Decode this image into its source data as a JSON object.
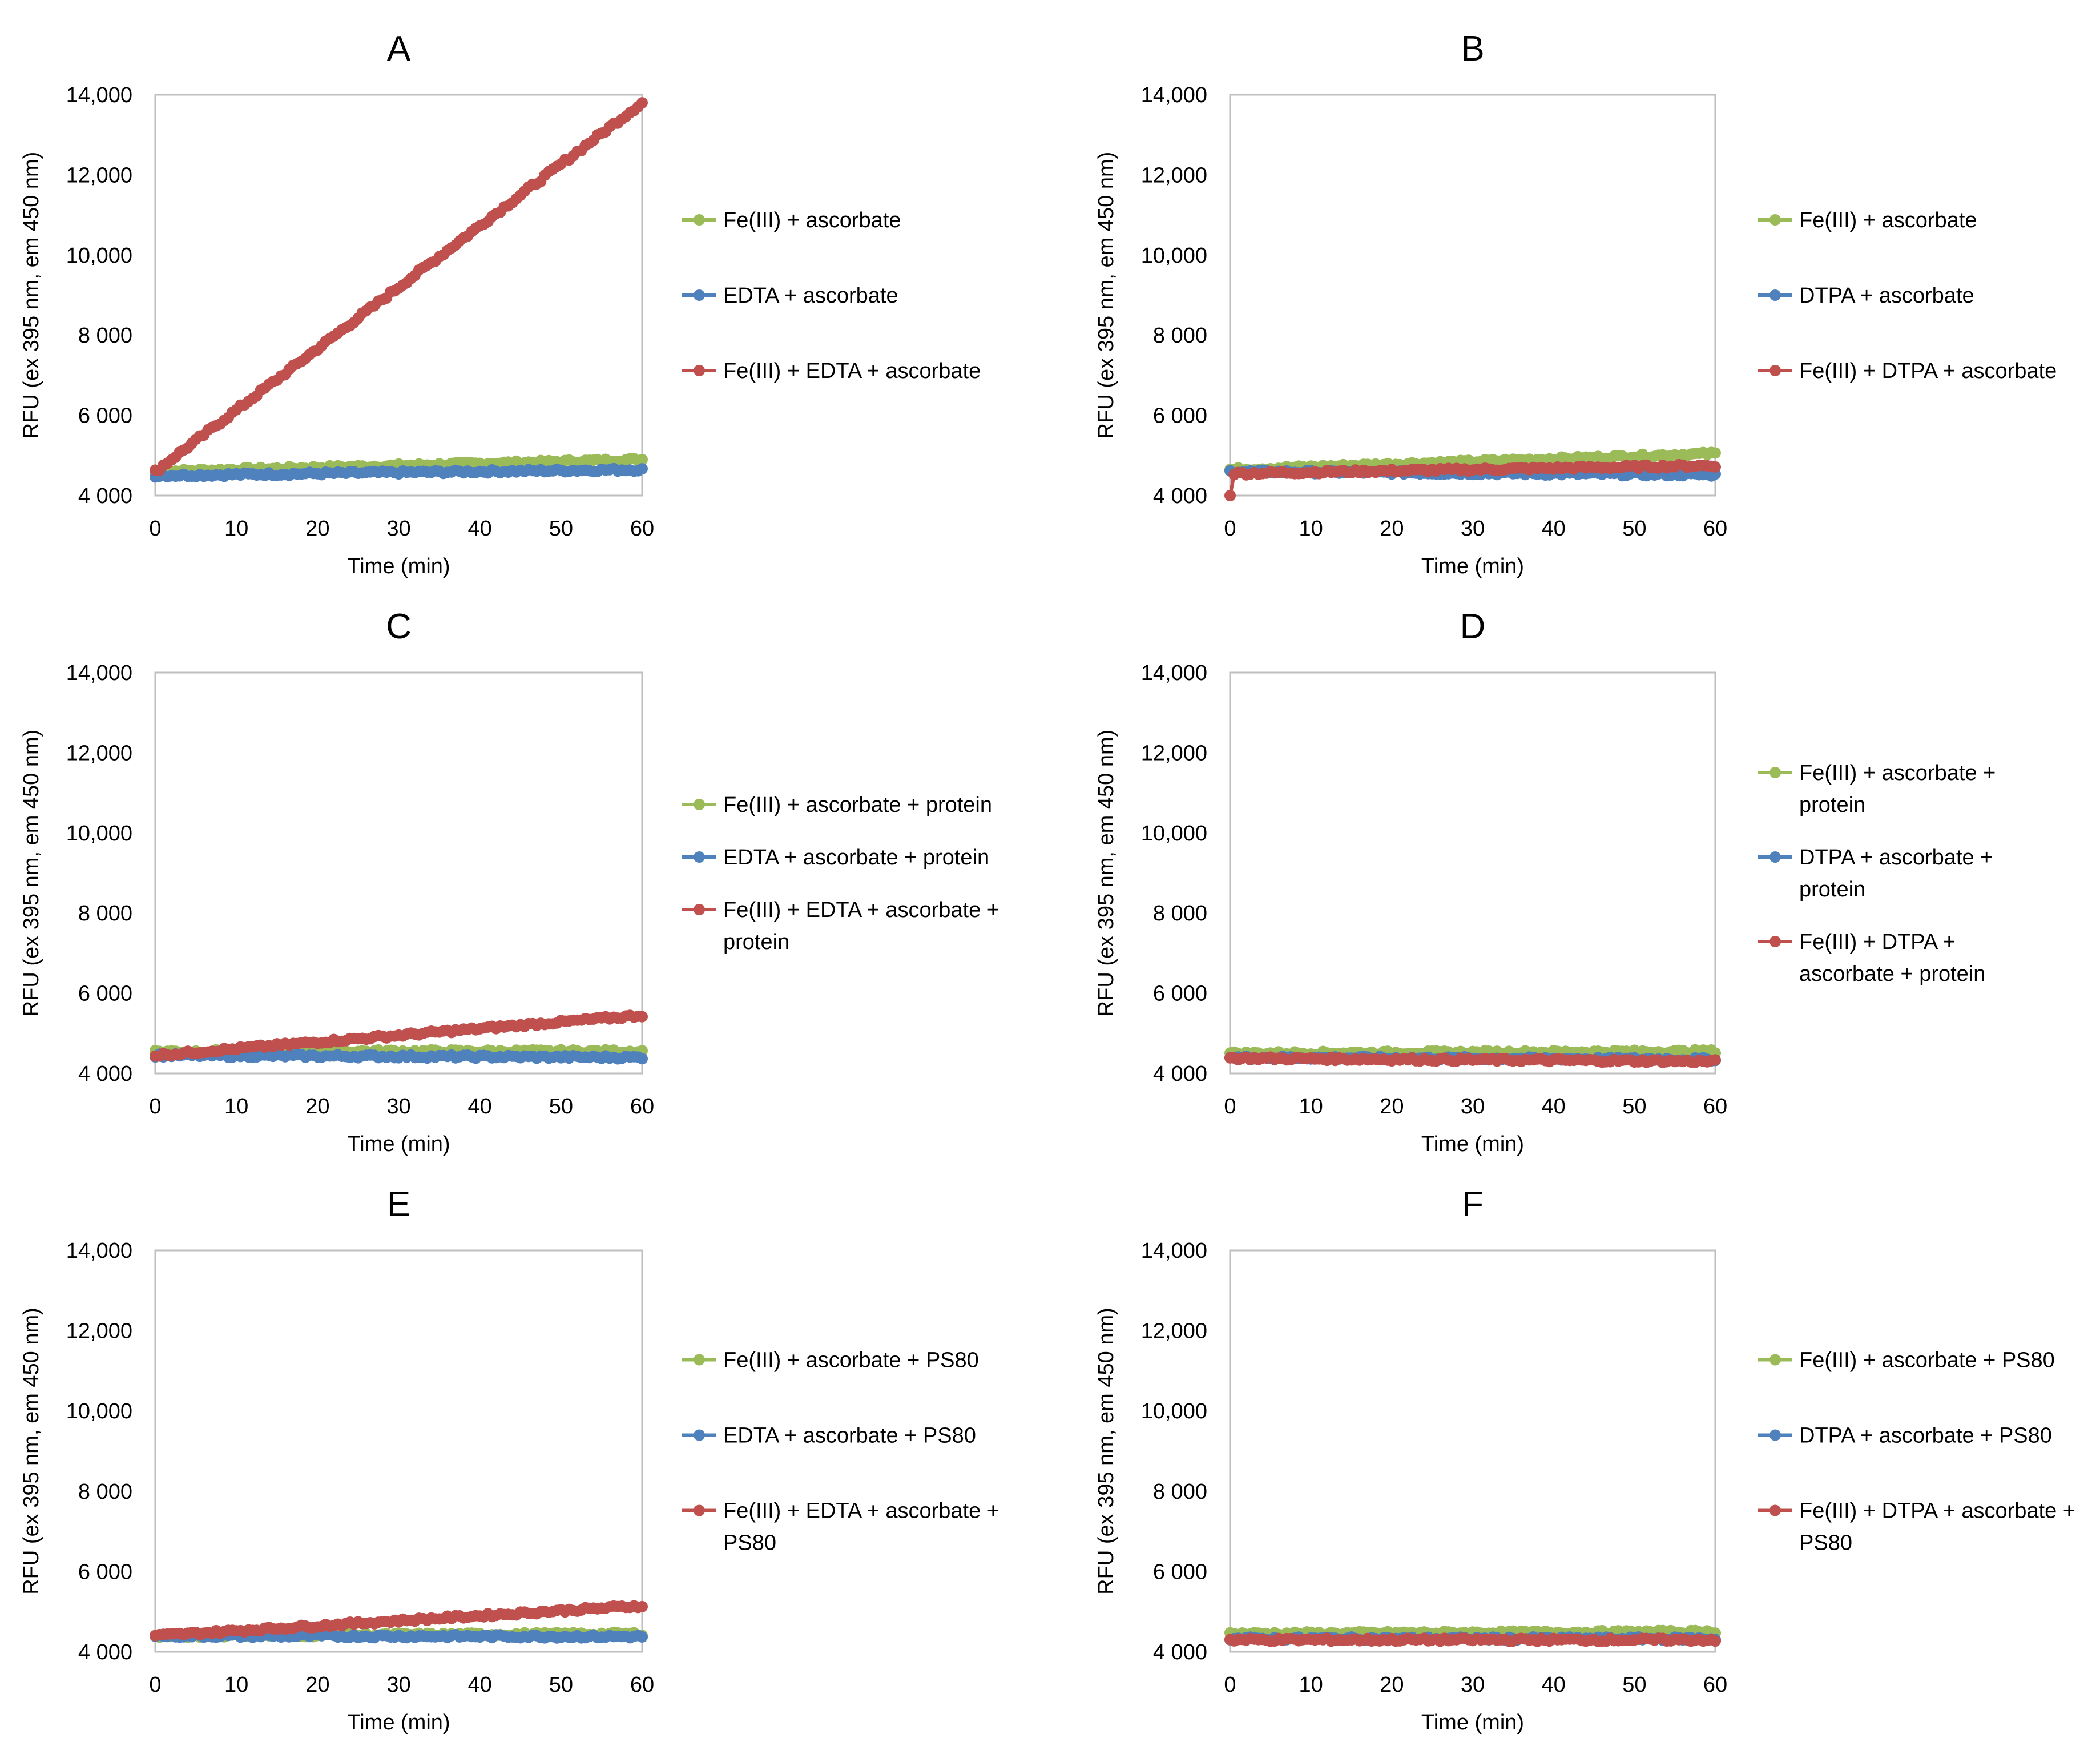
{
  "figure": {
    "x_axis_title": "Time (min)",
    "y_axis_title": "RFU (ex 395 nm, em 450 nm)"
  },
  "colors": {
    "green": "#9bbb59",
    "blue": "#4f81bd",
    "red": "#c0504d"
  },
  "chart_data": [
    {
      "type": "scatter",
      "title": "A",
      "xlabel": "Time (min)",
      "ylabel": "RFU (ex 395 nm, em 450 nm)",
      "xlim": [
        0,
        60
      ],
      "ylim": [
        4000,
        14000
      ],
      "x_ticks": [
        "0",
        "10",
        "20",
        "30",
        "40",
        "50",
        "60"
      ],
      "y_ticks": [
        "4 000",
        "6 000",
        "8 000",
        "10,000",
        "12,000",
        "14,000"
      ],
      "series": [
        {
          "name": "Fe(III) + ascorbate",
          "color_key": "green",
          "start": 4600,
          "end": 4900,
          "noise": 40
        },
        {
          "name": "EDTA + ascorbate",
          "color_key": "blue",
          "start": 4500,
          "end": 4650,
          "noise": 40
        },
        {
          "name": "Fe(III) + EDTA + ascorbate",
          "color_key": "red",
          "start": 4600,
          "end": 13800,
          "noise": 50
        }
      ]
    },
    {
      "type": "scatter",
      "title": "B",
      "xlabel": "Time (min)",
      "ylabel": "RFU (ex 395 nm, em 450 nm)",
      "xlim": [
        0,
        60
      ],
      "ylim": [
        4000,
        14000
      ],
      "x_ticks": [
        "0",
        "10",
        "20",
        "30",
        "40",
        "50",
        "60"
      ],
      "y_ticks": [
        "4 000",
        "6 000",
        "8 000",
        "10,000",
        "12,000",
        "14,000"
      ],
      "series": [
        {
          "name": "Fe(III) + ascorbate",
          "color_key": "green",
          "start": 4650,
          "end": 5050,
          "noise": 40
        },
        {
          "name": "DTPA + ascorbate",
          "color_key": "blue",
          "start": 4600,
          "end": 4520,
          "noise": 40
        },
        {
          "name": "Fe(III) + DTPA + ascorbate",
          "color_key": "red",
          "start": 4550,
          "end": 4750,
          "noise": 40,
          "first_point": 4000
        }
      ]
    },
    {
      "type": "scatter",
      "title": "C",
      "xlabel": "Time (min)",
      "ylabel": "RFU (ex 395 nm, em 450 nm)",
      "xlim": [
        0,
        60
      ],
      "ylim": [
        4000,
        14000
      ],
      "x_ticks": [
        "0",
        "10",
        "20",
        "30",
        "40",
        "50",
        "60"
      ],
      "y_ticks": [
        "4 000",
        "6 000",
        "8 000",
        "10,000",
        "12,000",
        "14,000"
      ],
      "series": [
        {
          "name": "Fe(III) + ascorbate + protein",
          "color_key": "green",
          "start": 4550,
          "end": 4550,
          "noise": 40
        },
        {
          "name": "EDTA + ascorbate + protein",
          "color_key": "blue",
          "start": 4450,
          "end": 4400,
          "noise": 40
        },
        {
          "name": "Fe(III) + EDTA + ascorbate + protein",
          "color_key": "red",
          "start": 4450,
          "end": 5450,
          "noise": 40
        }
      ]
    },
    {
      "type": "scatter",
      "title": "D",
      "xlabel": "Time (min)",
      "ylabel": "RFU (ex 395 nm, em 450 nm)",
      "xlim": [
        0,
        60
      ],
      "ylim": [
        4000,
        14000
      ],
      "x_ticks": [
        "0",
        "10",
        "20",
        "30",
        "40",
        "50",
        "60"
      ],
      "y_ticks": [
        "4 000",
        "6 000",
        "8 000",
        "10,000",
        "12,000",
        "14,000"
      ],
      "series": [
        {
          "name": "Fe(III) + ascorbate + protein",
          "color_key": "green",
          "start": 4500,
          "end": 4550,
          "noise": 40
        },
        {
          "name": "DTPA + ascorbate + protein",
          "color_key": "blue",
          "start": 4400,
          "end": 4350,
          "noise": 40
        },
        {
          "name": "Fe(III) + DTPA + ascorbate + protein",
          "color_key": "red",
          "start": 4380,
          "end": 4300,
          "noise": 40
        }
      ]
    },
    {
      "type": "scatter",
      "title": "E",
      "xlabel": "Time (min)",
      "ylabel": "RFU (ex 395 nm, em 450 nm)",
      "xlim": [
        0,
        60
      ],
      "ylim": [
        4000,
        14000
      ],
      "x_ticks": [
        "0",
        "10",
        "20",
        "30",
        "40",
        "50",
        "60"
      ],
      "y_ticks": [
        "4 000",
        "6 000",
        "8 000",
        "10,000",
        "12,000",
        "14,000"
      ],
      "series": [
        {
          "name": "Fe(III) + ascorbate + PS80",
          "color_key": "green",
          "start": 4400,
          "end": 4450,
          "noise": 40
        },
        {
          "name": "EDTA + ascorbate + PS80",
          "color_key": "blue",
          "start": 4400,
          "end": 4380,
          "noise": 40
        },
        {
          "name": "Fe(III) + EDTA + ascorbate + PS80",
          "color_key": "red",
          "start": 4400,
          "end": 5150,
          "noise": 40
        }
      ]
    },
    {
      "type": "scatter",
      "title": "F",
      "xlabel": "Time (min)",
      "ylabel": "RFU (ex 395 nm, em 450 nm)",
      "xlim": [
        0,
        60
      ],
      "ylim": [
        4000,
        14000
      ],
      "x_ticks": [
        "0",
        "10",
        "20",
        "30",
        "40",
        "50",
        "60"
      ],
      "y_ticks": [
        "4 000",
        "6 000",
        "8 000",
        "10,000",
        "12,000",
        "14,000"
      ],
      "series": [
        {
          "name": "Fe(III) + ascorbate + PS80",
          "color_key": "green",
          "start": 4450,
          "end": 4500,
          "noise": 40
        },
        {
          "name": "DTPA + ascorbate + PS80",
          "color_key": "blue",
          "start": 4330,
          "end": 4330,
          "noise": 40
        },
        {
          "name": "Fe(III) + DTPA + ascorbate + PS80",
          "color_key": "red",
          "start": 4300,
          "end": 4300,
          "noise": 40
        }
      ]
    }
  ]
}
